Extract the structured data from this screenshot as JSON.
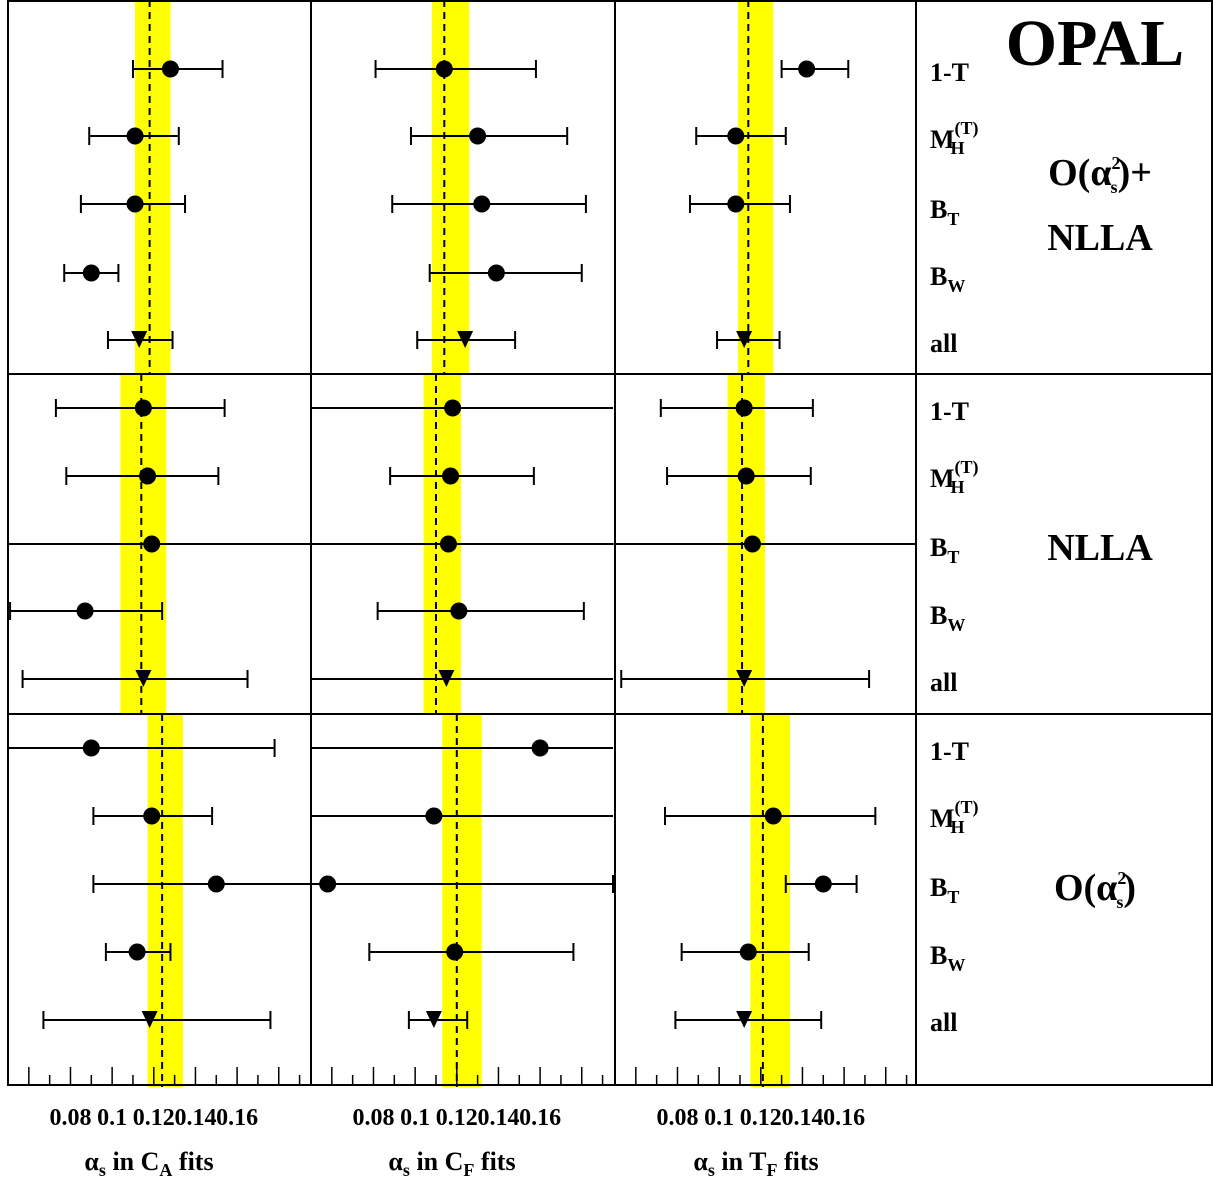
{
  "title": "OPAL",
  "observables": [
    {
      "main": "1-T",
      "sub": "",
      "sup": ""
    },
    {
      "main": "M",
      "sub": "H",
      "sup": "(T)"
    },
    {
      "main": "B",
      "sub": "T",
      "sup": ""
    },
    {
      "main": "B",
      "sub": "W",
      "sup": ""
    },
    {
      "main": "all",
      "sub": "",
      "sup": ""
    }
  ],
  "row_labels": [
    {
      "line1_pre": "O(α",
      "line1_sub": "s",
      "line1_sup": "2",
      "line1_post": ")+",
      "line2": "NLLA"
    },
    {
      "line1_pre": "",
      "line1_sub": "",
      "line1_sup": "",
      "line1_post": "",
      "line2": "NLLA"
    },
    {
      "line1_pre": "O(α",
      "line1_sub": "s",
      "line1_sup": "2",
      "line1_post": ")",
      "line2": ""
    }
  ],
  "column_labels": [
    {
      "alpha": "α",
      "alpha_sub": "s",
      "mid": " in C",
      "mid_sub": "A",
      "post": " fits"
    },
    {
      "alpha": "α",
      "alpha_sub": "s",
      "mid": " in C",
      "mid_sub": "F",
      "post": " fits"
    },
    {
      "alpha": "α",
      "alpha_sub": "s",
      "mid": " in T",
      "mid_sub": "F",
      "post": " fits"
    }
  ],
  "tick_labels": [
    "0.08",
    "0.1",
    "0.12",
    "0.14",
    "0.16"
  ],
  "colors": {
    "band": "#ffff00",
    "marker": "#000000",
    "frame": "#000000"
  },
  "chart_data": {
    "type": "scatter",
    "xlim": [
      0.05,
      0.195
    ],
    "xticks_major": [
      0.08,
      0.1,
      0.12,
      0.14,
      0.16
    ],
    "grid": false,
    "marker_shapes": {
      "individual": "circle",
      "combined": "triangle-down"
    },
    "panels": [
      {
        "row": "O(αs²)+NLLA",
        "column": "αs in CA fits",
        "band": [
          0.111,
          0.128
        ],
        "central": 0.118,
        "points": [
          {
            "obs": "1-T",
            "value": 0.128,
            "err_low": 0.11,
            "err_high": 0.153
          },
          {
            "obs": "MH(T)",
            "value": 0.111,
            "err_low": 0.089,
            "err_high": 0.132
          },
          {
            "obs": "BT",
            "value": 0.111,
            "err_low": 0.085,
            "err_high": 0.135
          },
          {
            "obs": "BW",
            "value": 0.09,
            "err_low": 0.077,
            "err_high": 0.103
          },
          {
            "obs": "all",
            "value": 0.113,
            "err_low": 0.098,
            "err_high": 0.129
          }
        ]
      },
      {
        "row": "O(αs²)+NLLA",
        "column": "αs in CF fits",
        "band": [
          0.108,
          0.126
        ],
        "central": 0.114,
        "points": [
          {
            "obs": "1-T",
            "value": 0.114,
            "err_low": 0.081,
            "err_high": 0.158
          },
          {
            "obs": "MH(T)",
            "value": 0.13,
            "err_low": 0.098,
            "err_high": 0.173
          },
          {
            "obs": "BT",
            "value": 0.132,
            "err_low": 0.089,
            "err_high": 0.182
          },
          {
            "obs": "BW",
            "value": 0.139,
            "err_low": 0.107,
            "err_high": 0.18
          },
          {
            "obs": "all",
            "value": 0.124,
            "err_low": 0.101,
            "err_high": 0.148
          }
        ]
      },
      {
        "row": "O(αs²)+NLLA",
        "column": "αs in TF fits",
        "band": [
          0.109,
          0.126
        ],
        "central": 0.114,
        "points": [
          {
            "obs": "1-T",
            "value": 0.142,
            "err_low": 0.13,
            "err_high": 0.162
          },
          {
            "obs": "MH(T)",
            "value": 0.108,
            "err_low": 0.089,
            "err_high": 0.132
          },
          {
            "obs": "BT",
            "value": 0.108,
            "err_low": 0.086,
            "err_high": 0.134
          },
          {
            "obs": "all",
            "value": 0.112,
            "err_low": 0.099,
            "err_high": 0.129
          }
        ]
      },
      {
        "row": "NLLA",
        "column": "αs in CA fits",
        "band": [
          0.104,
          0.126
        ],
        "central": 0.114,
        "points": [
          {
            "obs": "1-T",
            "value": 0.115,
            "err_low": 0.073,
            "err_high": 0.154
          },
          {
            "obs": "MH(T)",
            "value": 0.117,
            "err_low": 0.078,
            "err_high": 0.151
          },
          {
            "obs": "BT",
            "value": 0.119,
            "err_low": null,
            "err_high": null
          },
          {
            "obs": "BW",
            "value": 0.087,
            "err_low": 0.051,
            "err_high": 0.124
          },
          {
            "obs": "all",
            "value": 0.115,
            "err_low": 0.057,
            "err_high": 0.165
          }
        ]
      },
      {
        "row": "NLLA",
        "column": "αs in CF fits",
        "band": [
          0.104,
          0.122
        ],
        "central": 0.11,
        "points": [
          {
            "obs": "1-T",
            "value": 0.118,
            "err_low": null,
            "err_high": null
          },
          {
            "obs": "MH(T)",
            "value": 0.117,
            "err_low": 0.088,
            "err_high": 0.157
          },
          {
            "obs": "BT",
            "value": 0.116,
            "err_low": null,
            "err_high": null
          },
          {
            "obs": "BW",
            "value": 0.121,
            "err_low": 0.082,
            "err_high": 0.181
          },
          {
            "obs": "all",
            "value": 0.115,
            "err_low": null,
            "err_high": null
          }
        ]
      },
      {
        "row": "NLLA",
        "column": "αs in TF fits",
        "band": [
          0.104,
          0.122
        ],
        "central": 0.111,
        "points": [
          {
            "obs": "1-T",
            "value": 0.112,
            "err_low": 0.072,
            "err_high": 0.145
          },
          {
            "obs": "MH(T)",
            "value": 0.113,
            "err_low": 0.075,
            "err_high": 0.144
          },
          {
            "obs": "BT",
            "value": 0.116,
            "err_low": null,
            "err_high": null
          },
          {
            "obs": "all",
            "value": 0.112,
            "err_low": 0.053,
            "err_high": 0.172
          }
        ]
      },
      {
        "row": "O(αs²)",
        "column": "αs in CA fits",
        "band": [
          0.117,
          0.134
        ],
        "central": 0.124,
        "points": [
          {
            "obs": "1-T",
            "value": 0.09,
            "err_low": null,
            "err_high": 0.178
          },
          {
            "obs": "MH(T)",
            "value": 0.119,
            "err_low": 0.091,
            "err_high": 0.148
          },
          {
            "obs": "BT",
            "value": 0.15,
            "err_low": 0.091,
            "err_high": null
          },
          {
            "obs": "BW",
            "value": 0.112,
            "err_low": 0.097,
            "err_high": 0.128
          },
          {
            "obs": "all",
            "value": 0.118,
            "err_low": 0.067,
            "err_high": 0.176
          }
        ]
      },
      {
        "row": "O(αs²)",
        "column": "αs in CF fits",
        "band": [
          0.113,
          0.132
        ],
        "central": 0.12,
        "points": [
          {
            "obs": "1-T",
            "value": 0.16,
            "err_low": null,
            "err_high": null
          },
          {
            "obs": "MH(T)",
            "value": 0.109,
            "err_low": null,
            "err_high": null
          },
          {
            "obs": "BT",
            "value": 0.058,
            "err_low": null,
            "err_high": 0.195
          },
          {
            "obs": "BW",
            "value": 0.119,
            "err_low": 0.078,
            "err_high": 0.176
          },
          {
            "obs": "all",
            "value": 0.109,
            "err_low": 0.097,
            "err_high": 0.125
          }
        ]
      },
      {
        "row": "O(αs²)",
        "column": "αs in TF fits",
        "band": [
          0.115,
          0.134
        ],
        "central": 0.121,
        "points": [
          {
            "obs": "MH(T)",
            "value": 0.126,
            "err_low": 0.074,
            "err_high": 0.175
          },
          {
            "obs": "BT",
            "value": 0.15,
            "err_low": 0.132,
            "err_high": 0.166
          },
          {
            "obs": "BW",
            "value": 0.114,
            "err_low": 0.082,
            "err_high": 0.143
          },
          {
            "obs": "all",
            "value": 0.112,
            "err_low": 0.079,
            "err_high": 0.149
          }
        ]
      }
    ]
  }
}
